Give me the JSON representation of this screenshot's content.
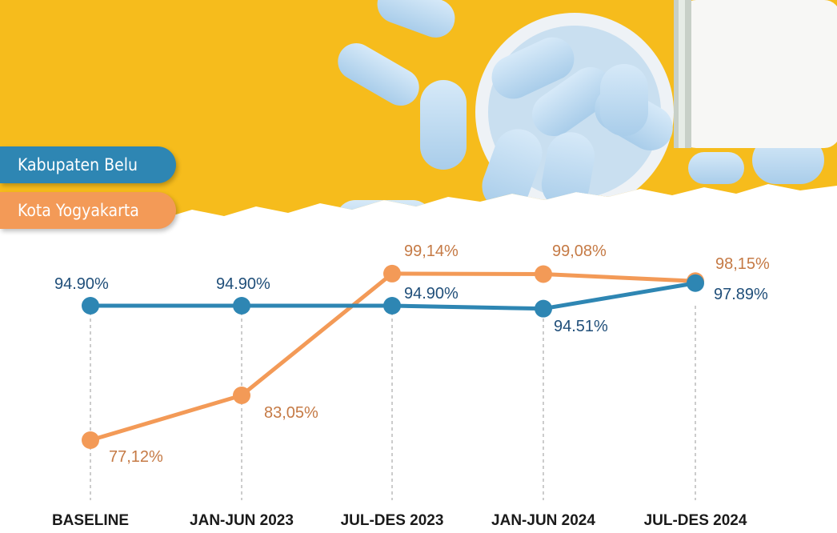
{
  "legend": {
    "series_1": "Kabupaten Belu",
    "series_2": "Kota Yogyakarta"
  },
  "colors": {
    "series_1": "#2e86b3",
    "series_1_label": "#1f4e79",
    "series_2": "#f39a57",
    "series_2_label": "#c57a45",
    "banner_bg": "#f6bc1c",
    "pill": "#bfdcf2"
  },
  "chart_data": {
    "type": "line",
    "categories": [
      "BASELINE",
      "JAN-JUN 2023",
      "JUL-DES 2023",
      "JAN-JUN 2024",
      "JUL-DES 2024"
    ],
    "series": [
      {
        "name": "Kabupaten Belu",
        "values": [
          94.9,
          94.9,
          94.9,
          94.51,
          97.89
        ],
        "labels": [
          "94.90%",
          "94.90%",
          "94.90%",
          "94.51%",
          "97.89%"
        ]
      },
      {
        "name": "Kota Yogyakarta",
        "values": [
          77.12,
          83.05,
          99.14,
          99.08,
          98.15
        ],
        "labels": [
          "77,12%",
          "83,05%",
          "99,14%",
          "99,08%",
          "98,15%"
        ]
      }
    ],
    "title": "",
    "xlabel": "",
    "ylabel": "",
    "ylim": [
      77,
      99.5
    ],
    "grid": false,
    "legend_position": "top-left"
  }
}
